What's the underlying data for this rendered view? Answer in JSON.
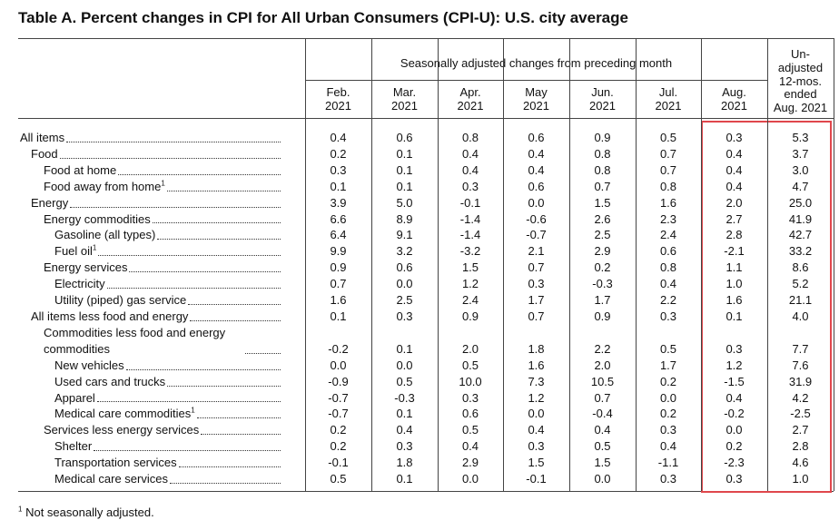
{
  "title": "Table A. Percent changes in CPI for All Urban Consumers (CPI-U): U.S. city average",
  "header": {
    "group": "Seasonally adjusted changes from preceding month",
    "columns": [
      {
        "month": "Feb.",
        "year": "2021"
      },
      {
        "month": "Mar.",
        "year": "2021"
      },
      {
        "month": "Apr.",
        "year": "2021"
      },
      {
        "month": "May",
        "year": "2021"
      },
      {
        "month": "Jun.",
        "year": "2021"
      },
      {
        "month": "Jul.",
        "year": "2021"
      },
      {
        "month": "Aug.",
        "year": "2021"
      }
    ],
    "unadjusted": [
      "Un-",
      "adjusted",
      "12-mos.",
      "ended",
      "Aug. 2021"
    ]
  },
  "table": {
    "rows": [
      {
        "label": "All items",
        "values": [
          "0.4",
          "0.6",
          "0.8",
          "0.6",
          "0.9",
          "0.5",
          "0.3",
          "5.3"
        ]
      },
      {
        "label": "Food",
        "values": [
          "0.2",
          "0.1",
          "0.4",
          "0.4",
          "0.8",
          "0.7",
          "0.4",
          "3.7"
        ]
      },
      {
        "label": "Food at home",
        "values": [
          "0.3",
          "0.1",
          "0.4",
          "0.4",
          "0.8",
          "0.7",
          "0.4",
          "3.0"
        ]
      },
      {
        "label": "Food away from home",
        "note": "1",
        "values": [
          "0.1",
          "0.1",
          "0.3",
          "0.6",
          "0.7",
          "0.8",
          "0.4",
          "4.7"
        ]
      },
      {
        "label": "Energy",
        "values": [
          "3.9",
          "5.0",
          "-0.1",
          "0.0",
          "1.5",
          "1.6",
          "2.0",
          "25.0"
        ]
      },
      {
        "label": "Energy commodities",
        "values": [
          "6.6",
          "8.9",
          "-1.4",
          "-0.6",
          "2.6",
          "2.3",
          "2.7",
          "41.9"
        ]
      },
      {
        "label": "Gasoline (all types)",
        "values": [
          "6.4",
          "9.1",
          "-1.4",
          "-0.7",
          "2.5",
          "2.4",
          "2.8",
          "42.7"
        ]
      },
      {
        "label": "Fuel oil",
        "note": "1",
        "values": [
          "9.9",
          "3.2",
          "-3.2",
          "2.1",
          "2.9",
          "0.6",
          "-2.1",
          "33.2"
        ]
      },
      {
        "label": "Energy services",
        "values": [
          "0.9",
          "0.6",
          "1.5",
          "0.7",
          "0.2",
          "0.8",
          "1.1",
          "8.6"
        ]
      },
      {
        "label": "Electricity",
        "values": [
          "0.7",
          "0.0",
          "1.2",
          "0.3",
          "-0.3",
          "0.4",
          "1.0",
          "5.2"
        ]
      },
      {
        "label": "Utility (piped) gas service",
        "values": [
          "1.6",
          "2.5",
          "2.4",
          "1.7",
          "1.7",
          "2.2",
          "1.6",
          "21.1"
        ]
      },
      {
        "label": "All items less food and energy",
        "values": [
          "0.1",
          "0.3",
          "0.9",
          "0.7",
          "0.9",
          "0.3",
          "0.1",
          "4.0"
        ]
      },
      {
        "label": "Commodities less food and energy commodities",
        "values": [
          "-0.2",
          "0.1",
          "2.0",
          "1.8",
          "2.2",
          "0.5",
          "0.3",
          "7.7"
        ]
      },
      {
        "label": "New vehicles",
        "values": [
          "0.0",
          "0.0",
          "0.5",
          "1.6",
          "2.0",
          "1.7",
          "1.2",
          "7.6"
        ]
      },
      {
        "label": "Used cars and trucks",
        "values": [
          "-0.9",
          "0.5",
          "10.0",
          "7.3",
          "10.5",
          "0.2",
          "-1.5",
          "31.9"
        ]
      },
      {
        "label": "Apparel",
        "values": [
          "-0.7",
          "-0.3",
          "0.3",
          "1.2",
          "0.7",
          "0.0",
          "0.4",
          "4.2"
        ]
      },
      {
        "label": "Medical care commodities",
        "note": "1",
        "values": [
          "-0.7",
          "0.1",
          "0.6",
          "0.0",
          "-0.4",
          "0.2",
          "-0.2",
          "-2.5"
        ]
      },
      {
        "label": "Services less energy services",
        "values": [
          "0.2",
          "0.4",
          "0.5",
          "0.4",
          "0.4",
          "0.3",
          "0.0",
          "2.7"
        ]
      },
      {
        "label": "Shelter",
        "values": [
          "0.2",
          "0.3",
          "0.4",
          "0.3",
          "0.5",
          "0.4",
          "0.2",
          "2.8"
        ]
      },
      {
        "label": "Transportation services",
        "values": [
          "-0.1",
          "1.8",
          "2.9",
          "1.5",
          "1.5",
          "-1.1",
          "-2.3",
          "4.6"
        ]
      },
      {
        "label": "Medical care services",
        "values": [
          "0.5",
          "0.1",
          "0.0",
          "-0.1",
          "0.0",
          "0.3",
          "0.3",
          "1.0"
        ]
      }
    ]
  },
  "footnote": {
    "mark": "1",
    "text": "Not seasonally adjusted."
  }
}
